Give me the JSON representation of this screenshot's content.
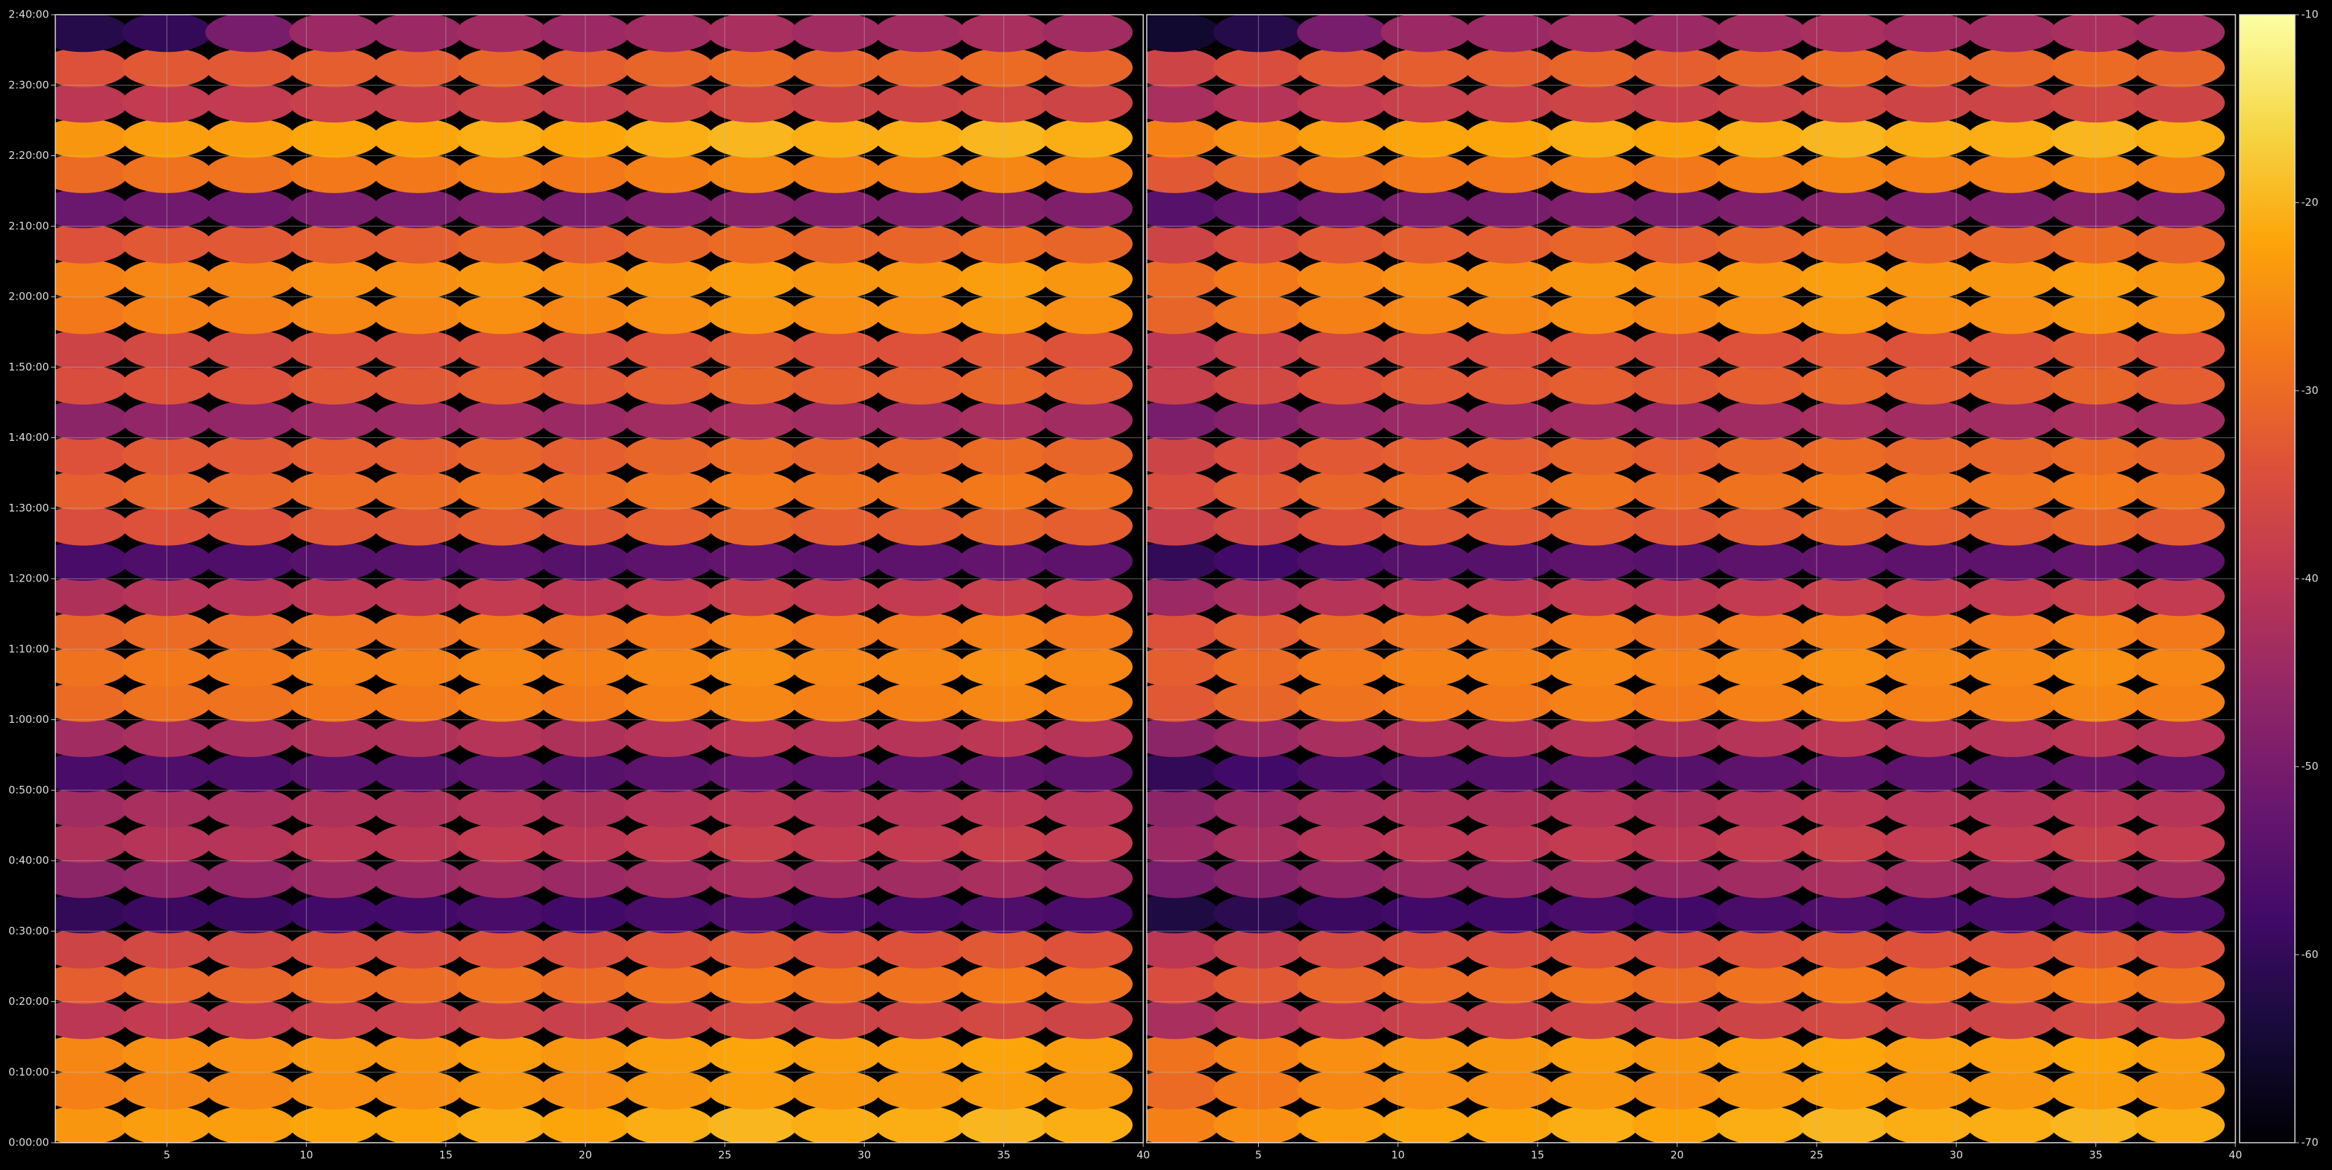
{
  "chart_data": [
    {
      "type": "heatmap",
      "show_yticklabels": true,
      "x": [
        2,
        5,
        8,
        11,
        14,
        17,
        20,
        23,
        26,
        29,
        32,
        35,
        38
      ],
      "y": [
        150,
        450,
        750,
        1050,
        1350,
        1650,
        1950,
        2250,
        2550,
        2850,
        3150,
        3450,
        3750,
        4050,
        4350,
        4650,
        4950,
        5250,
        5550,
        5850,
        6150,
        6450,
        6750,
        7050,
        7350,
        7650,
        7950,
        8250,
        8550,
        8850,
        9150,
        9450
      ],
      "values": [
        [
          -24,
          -23,
          -23,
          -22,
          -22,
          -21,
          -22,
          -21,
          -20,
          -21,
          -21,
          -20,
          -21
        ],
        [
          -27,
          -26,
          -26,
          -25,
          -25,
          -24,
          -25,
          -24,
          -23,
          -24,
          -24,
          -23,
          -24
        ],
        [
          -26,
          -25,
          -25,
          -24,
          -24,
          -23,
          -24,
          -23,
          -22,
          -23,
          -23,
          -22,
          -23
        ],
        [
          -40,
          -39,
          -39,
          -38,
          -38,
          -37,
          -38,
          -37,
          -36,
          -37,
          -37,
          -36,
          -37
        ],
        [
          -32,
          -31,
          -31,
          -30,
          -30,
          -29,
          -30,
          -29,
          -28,
          -29,
          -29,
          -28,
          -29
        ],
        [
          -37,
          -36,
          -36,
          -35,
          -35,
          -34,
          -35,
          -34,
          -33,
          -34,
          -34,
          -33,
          -34
        ],
        [
          -60,
          -59,
          -59,
          -58,
          -58,
          -57,
          -58,
          -57,
          -56,
          -57,
          -57,
          -56,
          -57
        ],
        [
          -47,
          -46,
          -46,
          -45,
          -45,
          -44,
          -45,
          -44,
          -43,
          -44,
          -44,
          -43,
          -44
        ],
        [
          -42,
          -41,
          -41,
          -40,
          -40,
          -39,
          -40,
          -39,
          -38,
          -39,
          -39,
          -38,
          -39
        ],
        [
          -44,
          -43,
          -43,
          -42,
          -42,
          -41,
          -42,
          -41,
          -40,
          -41,
          -41,
          -40,
          -41
        ],
        [
          -57,
          -56,
          -56,
          -55,
          -55,
          -54,
          -55,
          -54,
          -53,
          -54,
          -54,
          -53,
          -54
        ],
        [
          -44,
          -43,
          -43,
          -42,
          -42,
          -41,
          -42,
          -41,
          -40,
          -41,
          -41,
          -40,
          -41
        ],
        [
          -30,
          -29,
          -29,
          -28,
          -28,
          -27,
          -28,
          -27,
          -26,
          -27,
          -27,
          -26,
          -27
        ],
        [
          -29,
          -28,
          -28,
          -27,
          -27,
          -26,
          -27,
          -26,
          -25,
          -26,
          -26,
          -25,
          -26
        ],
        [
          -31,
          -30,
          -30,
          -29,
          -29,
          -28,
          -29,
          -28,
          -27,
          -28,
          -28,
          -27,
          -28
        ],
        [
          -42,
          -41,
          -41,
          -40,
          -40,
          -39,
          -40,
          -39,
          -38,
          -39,
          -39,
          -38,
          -39
        ],
        [
          -57,
          -56,
          -56,
          -55,
          -55,
          -54,
          -55,
          -54,
          -53,
          -54,
          -54,
          -53,
          -54
        ],
        [
          -35,
          -34,
          -34,
          -33,
          -33,
          -32,
          -33,
          -32,
          -31,
          -32,
          -32,
          -31,
          -32
        ],
        [
          -32,
          -31,
          -31,
          -30,
          -30,
          -29,
          -30,
          -29,
          -28,
          -29,
          -29,
          -28,
          -29
        ],
        [
          -34,
          -33,
          -33,
          -32,
          -32,
          -31,
          -32,
          -31,
          -30,
          -31,
          -31,
          -30,
          -31
        ],
        [
          -47,
          -46,
          -46,
          -45,
          -45,
          -44,
          -45,
          -44,
          -43,
          -44,
          -44,
          -43,
          -44
        ],
        [
          -35,
          -34,
          -34,
          -33,
          -33,
          -32,
          -33,
          -32,
          -31,
          -32,
          -32,
          -31,
          -32
        ],
        [
          -37,
          -36,
          -36,
          -35,
          -35,
          -34,
          -35,
          -34,
          -33,
          -34,
          -34,
          -33,
          -34
        ],
        [
          -28,
          -27,
          -27,
          -26,
          -26,
          -25,
          -26,
          -25,
          -24,
          -25,
          -25,
          -24,
          -25
        ],
        [
          -27,
          -26,
          -26,
          -25,
          -25,
          -24,
          -25,
          -24,
          -23,
          -24,
          -24,
          -23,
          -24
        ],
        [
          -34,
          -33,
          -33,
          -32,
          -32,
          -31,
          -32,
          -31,
          -30,
          -31,
          -31,
          -30,
          -31
        ],
        [
          -52,
          -51,
          -51,
          -50,
          -50,
          -49,
          -50,
          -49,
          -48,
          -49,
          -49,
          -48,
          -49
        ],
        [
          -30,
          -29,
          -29,
          -28,
          -28,
          -27,
          -28,
          -27,
          -26,
          -27,
          -27,
          -26,
          -27
        ],
        [
          -24,
          -23,
          -23,
          -22,
          -22,
          -21,
          -22,
          -21,
          -20,
          -21,
          -21,
          -20,
          -21
        ],
        [
          -40,
          -39,
          -39,
          -38,
          -38,
          -37,
          -38,
          -37,
          -36,
          -37,
          -37,
          -36,
          -37
        ],
        [
          -34,
          -33,
          -33,
          -32,
          -32,
          -31,
          -32,
          -31,
          -30,
          -31,
          -31,
          -30,
          -31
        ],
        [
          -62,
          -60,
          -50,
          -45,
          -45,
          -44,
          -45,
          -44,
          -43,
          -44,
          -44,
          -43,
          -44
        ]
      ],
      "xlim": [
        1,
        40
      ],
      "xticks": [
        5,
        10,
        15,
        20,
        25,
        30,
        35,
        40
      ],
      "ylim": [
        0,
        9600
      ],
      "yticks": [
        {
          "value": 0,
          "label": "0:00:00"
        },
        {
          "value": 600,
          "label": "0:10:00"
        },
        {
          "value": 1200,
          "label": "0:20:00"
        },
        {
          "value": 1800,
          "label": "0:30:00"
        },
        {
          "value": 2400,
          "label": "0:40:00"
        },
        {
          "value": 3000,
          "label": "0:50:00"
        },
        {
          "value": 3600,
          "label": "1:00:00"
        },
        {
          "value": 4200,
          "label": "1:10:00"
        },
        {
          "value": 4800,
          "label": "1:20:00"
        },
        {
          "value": 5400,
          "label": "1:30:00"
        },
        {
          "value": 6000,
          "label": "1:40:00"
        },
        {
          "value": 6600,
          "label": "1:50:00"
        },
        {
          "value": 7200,
          "label": "2:00:00"
        },
        {
          "value": 7800,
          "label": "2:10:00"
        },
        {
          "value": 8400,
          "label": "2:20:00"
        },
        {
          "value": 9000,
          "label": "2:30:00"
        },
        {
          "value": 9600,
          "label": "2:40:00"
        }
      ],
      "grid": true
    },
    {
      "type": "heatmap",
      "show_yticklabels": false,
      "x": [
        2,
        5,
        8,
        11,
        14,
        17,
        20,
        23,
        26,
        29,
        32,
        35,
        38
      ],
      "y": [
        150,
        450,
        750,
        1050,
        1350,
        1650,
        1950,
        2250,
        2550,
        2850,
        3150,
        3450,
        3750,
        4050,
        4350,
        4650,
        4950,
        5250,
        5550,
        5850,
        6150,
        6450,
        6750,
        7050,
        7350,
        7650,
        7950,
        8250,
        8550,
        8850,
        9150,
        9450
      ],
      "values": [
        [
          -27,
          -25,
          -23,
          -22,
          -22,
          -21,
          -22,
          -21,
          -20,
          -21,
          -21,
          -20,
          -21
        ],
        [
          -30,
          -28,
          -26,
          -25,
          -25,
          -24,
          -25,
          -24,
          -23,
          -24,
          -24,
          -23,
          -24
        ],
        [
          -29,
          -27,
          -25,
          -24,
          -24,
          -23,
          -24,
          -23,
          -22,
          -23,
          -23,
          -22,
          -23
        ],
        [
          -43,
          -41,
          -39,
          -38,
          -38,
          -37,
          -38,
          -37,
          -36,
          -37,
          -37,
          -36,
          -37
        ],
        [
          -35,
          -33,
          -31,
          -30,
          -30,
          -29,
          -30,
          -29,
          -28,
          -29,
          -29,
          -28,
          -29
        ],
        [
          -40,
          -38,
          -36,
          -35,
          -35,
          -34,
          -35,
          -34,
          -33,
          -34,
          -34,
          -33,
          -34
        ],
        [
          -63,
          -61,
          -59,
          -58,
          -58,
          -57,
          -58,
          -57,
          -56,
          -57,
          -57,
          -56,
          -57
        ],
        [
          -50,
          -48,
          -46,
          -45,
          -45,
          -44,
          -45,
          -44,
          -43,
          -44,
          -44,
          -43,
          -44
        ],
        [
          -45,
          -43,
          -41,
          -40,
          -40,
          -39,
          -40,
          -39,
          -38,
          -39,
          -39,
          -38,
          -39
        ],
        [
          -47,
          -45,
          -43,
          -42,
          -42,
          -41,
          -42,
          -41,
          -40,
          -41,
          -41,
          -40,
          -41
        ],
        [
          -60,
          -58,
          -56,
          -55,
          -55,
          -54,
          -55,
          -54,
          -53,
          -54,
          -54,
          -53,
          -54
        ],
        [
          -47,
          -45,
          -43,
          -42,
          -42,
          -41,
          -42,
          -41,
          -40,
          -41,
          -41,
          -40,
          -41
        ],
        [
          -33,
          -31,
          -29,
          -28,
          -28,
          -27,
          -28,
          -27,
          -26,
          -27,
          -27,
          -26,
          -27
        ],
        [
          -32,
          -30,
          -28,
          -27,
          -27,
          -26,
          -27,
          -26,
          -25,
          -26,
          -26,
          -25,
          -26
        ],
        [
          -34,
          -32,
          -30,
          -29,
          -29,
          -28,
          -29,
          -28,
          -27,
          -28,
          -28,
          -27,
          -28
        ],
        [
          -45,
          -43,
          -41,
          -40,
          -40,
          -39,
          -40,
          -39,
          -38,
          -39,
          -39,
          -38,
          -39
        ],
        [
          -60,
          -58,
          -56,
          -55,
          -55,
          -54,
          -55,
          -54,
          -53,
          -54,
          -54,
          -53,
          -54
        ],
        [
          -38,
          -36,
          -34,
          -33,
          -33,
          -32,
          -33,
          -32,
          -31,
          -32,
          -32,
          -31,
          -32
        ],
        [
          -35,
          -33,
          -31,
          -30,
          -30,
          -29,
          -30,
          -29,
          -28,
          -29,
          -29,
          -28,
          -29
        ],
        [
          -37,
          -35,
          -33,
          -32,
          -32,
          -31,
          -32,
          -31,
          -30,
          -31,
          -31,
          -30,
          -31
        ],
        [
          -50,
          -48,
          -46,
          -45,
          -45,
          -44,
          -45,
          -44,
          -43,
          -44,
          -44,
          -43,
          -44
        ],
        [
          -38,
          -36,
          -34,
          -33,
          -33,
          -32,
          -33,
          -32,
          -31,
          -32,
          -32,
          -31,
          -32
        ],
        [
          -40,
          -38,
          -36,
          -35,
          -35,
          -34,
          -35,
          -34,
          -33,
          -34,
          -34,
          -33,
          -34
        ],
        [
          -31,
          -29,
          -27,
          -26,
          -26,
          -25,
          -26,
          -25,
          -24,
          -25,
          -25,
          -24,
          -25
        ],
        [
          -30,
          -28,
          -26,
          -25,
          -25,
          -24,
          -25,
          -24,
          -23,
          -24,
          -24,
          -23,
          -24
        ],
        [
          -37,
          -35,
          -33,
          -32,
          -32,
          -31,
          -32,
          -31,
          -30,
          -31,
          -31,
          -30,
          -31
        ],
        [
          -55,
          -53,
          -51,
          -50,
          -50,
          -49,
          -50,
          -49,
          -48,
          -49,
          -49,
          -48,
          -49
        ],
        [
          -33,
          -31,
          -29,
          -28,
          -28,
          -27,
          -28,
          -27,
          -26,
          -27,
          -27,
          -26,
          -27
        ],
        [
          -27,
          -25,
          -23,
          -22,
          -22,
          -21,
          -22,
          -21,
          -20,
          -21,
          -21,
          -20,
          -21
        ],
        [
          -43,
          -41,
          -39,
          -38,
          -38,
          -37,
          -38,
          -37,
          -36,
          -37,
          -37,
          -36,
          -37
        ],
        [
          -37,
          -35,
          -33,
          -32,
          -32,
          -31,
          -32,
          -31,
          -30,
          -31,
          -31,
          -30,
          -31
        ],
        [
          -65,
          -62,
          -50,
          -45,
          -45,
          -44,
          -45,
          -44,
          -43,
          -44,
          -44,
          -43,
          -44
        ]
      ],
      "xlim": [
        1,
        40
      ],
      "xticks": [
        5,
        10,
        15,
        20,
        25,
        30,
        35,
        40
      ],
      "ylim": [
        0,
        9600
      ],
      "yticks": [
        0,
        600,
        1200,
        1800,
        2400,
        3000,
        3600,
        4200,
        4800,
        5400,
        6000,
        6600,
        7200,
        7800,
        8400,
        9000,
        9600
      ],
      "grid": true
    },
    {
      "type": "colorbar",
      "colormap": "inferno",
      "lim": [
        -70,
        -10
      ],
      "ticks": [
        -70,
        -60,
        -50,
        -40,
        -30,
        -20,
        -10
      ]
    }
  ]
}
